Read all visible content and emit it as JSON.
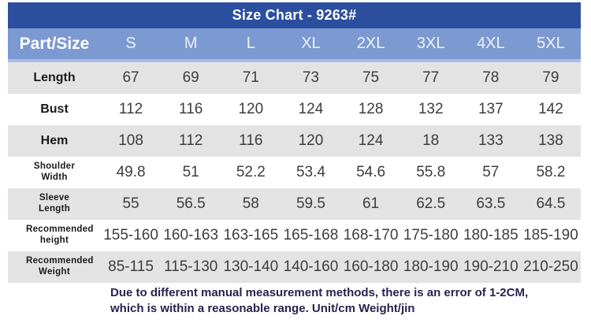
{
  "chart_data": {
    "type": "table",
    "title": "Size Chart - 9263#",
    "corner_label": "Part/Size",
    "sizes": [
      "S",
      "M",
      "L",
      "XL",
      "2XL",
      "3XL",
      "4XL",
      "5XL"
    ],
    "rows": [
      {
        "label": "Length",
        "values": [
          "67",
          "69",
          "71",
          "73",
          "75",
          "77",
          "78",
          "79"
        ]
      },
      {
        "label": "Bust",
        "values": [
          "112",
          "116",
          "120",
          "124",
          "128",
          "132",
          "137",
          "142"
        ]
      },
      {
        "label": "Hem",
        "values": [
          "108",
          "112",
          "116",
          "120",
          "124",
          "18",
          "133",
          "138"
        ]
      },
      {
        "label": "Shoulder Width",
        "values": [
          "49.8",
          "51",
          "52.2",
          "53.4",
          "54.6",
          "55.8",
          "57",
          "58.2"
        ]
      },
      {
        "label": "Sleeve Length",
        "values": [
          "55",
          "56.5",
          "58",
          "59.5",
          "61",
          "62.5",
          "63.5",
          "64.5"
        ]
      },
      {
        "label": "Recommended height",
        "values": [
          "155-160",
          "160-163",
          "163-165",
          "165-168",
          "168-170",
          "175-180",
          "180-185",
          "185-190"
        ]
      },
      {
        "label": "Recommended Weight",
        "values": [
          "85-115",
          "115-130",
          "130-140",
          "140-160",
          "160-180",
          "180-190",
          "190-210",
          "210-250"
        ]
      }
    ],
    "footnote_line1": "Due to different manual measurement methods, there is an error of 1-2CM,",
    "footnote_line2": "which is within a reasonable range. Unit/cm Weight/jin"
  },
  "colors": {
    "header_bg": "#2b4f9e",
    "subheader_bg": "#7d99d1",
    "subheader_divider": "#a9bce3",
    "row_alt_bg": "#e3e3e3",
    "value_text": "#3d3d3d",
    "footnote_text": "#2b2150"
  }
}
